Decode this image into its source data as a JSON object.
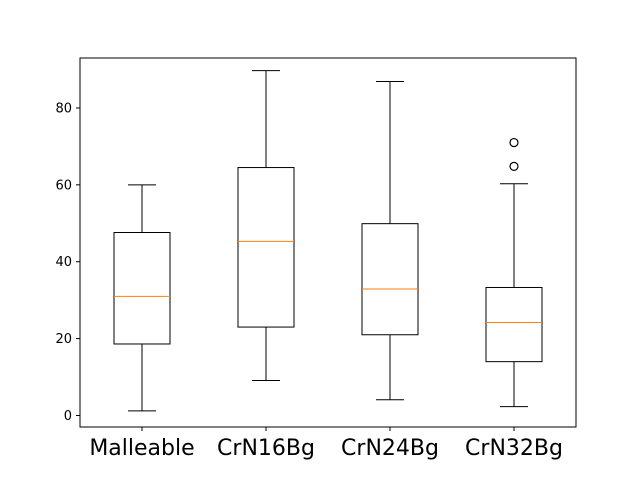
{
  "chart_data": {
    "type": "boxplot",
    "title": "",
    "xlabel": "",
    "ylabel": "",
    "ylim": [
      -3,
      93
    ],
    "yticks": [
      0,
      20,
      40,
      60,
      80
    ],
    "grid": false,
    "categories": [
      "Malleable",
      "CrN16Bg",
      "CrN24Bg",
      "CrN32Bg"
    ],
    "boxes": [
      {
        "category": "Malleable",
        "whisker_low": 1.2,
        "q1": 18.6,
        "median": 31.0,
        "q3": 47.6,
        "whisker_high": 60.0,
        "outliers": []
      },
      {
        "category": "CrN16Bg",
        "whisker_low": 9.1,
        "q1": 23.0,
        "median": 45.3,
        "q3": 64.5,
        "whisker_high": 89.7,
        "outliers": []
      },
      {
        "category": "CrN24Bg",
        "whisker_low": 4.1,
        "q1": 21.0,
        "median": 32.9,
        "q3": 49.9,
        "whisker_high": 86.9,
        "outliers": []
      },
      {
        "category": "CrN32Bg",
        "whisker_low": 2.3,
        "q1": 14.0,
        "median": 24.2,
        "q3": 33.3,
        "whisker_high": 60.3,
        "outliers": [
          64.8,
          71.0
        ]
      }
    ],
    "colors": {
      "box": "#000000",
      "median": "#ff7f0e",
      "outlier": "#000000"
    }
  }
}
